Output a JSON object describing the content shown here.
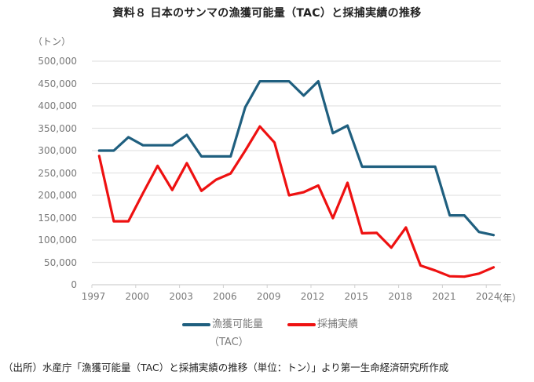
{
  "chart_data": {
    "type": "line",
    "title": "資料８ 日本のサンマの漁獲可能量（TAC）と採捕実績の推移",
    "ylabel": "（トン）",
    "xlabel": "（年）",
    "ylim": [
      0,
      500000
    ],
    "y_ticks": [
      "500,000",
      "450,000",
      "400,000",
      "350,000",
      "300,000",
      "250,000",
      "200,000",
      "150,000",
      "100,000",
      "50,000",
      "0"
    ],
    "y_tick_values": [
      500000,
      450000,
      400000,
      350000,
      300000,
      250000,
      200000,
      150000,
      100000,
      50000,
      0
    ],
    "x_ticks": [
      "1997",
      "2000",
      "2003",
      "2006",
      "2009",
      "2012",
      "2015",
      "2018",
      "2021",
      "2024"
    ],
    "x": [
      1997,
      1998,
      1999,
      2000,
      2001,
      2002,
      2003,
      2004,
      2005,
      2006,
      2007,
      2008,
      2009,
      2010,
      2011,
      2012,
      2013,
      2014,
      2015,
      2016,
      2017,
      2018,
      2019,
      2020,
      2021,
      2022,
      2023,
      2024
    ],
    "grid": true,
    "legend_position": "bottom",
    "series": [
      {
        "name": "漁獲可能量",
        "name_sub": "（TAC）",
        "color": "#1f5f7f",
        "values": [
          300000,
          300000,
          330000,
          312000,
          312000,
          312000,
          335000,
          287000,
          287000,
          287000,
          397000,
          455000,
          455000,
          455000,
          423000,
          455000,
          339000,
          356000,
          264000,
          264000,
          264000,
          264000,
          264000,
          264000,
          155000,
          155000,
          118000,
          111000
        ]
      },
      {
        "name": "採捕実績",
        "color": "#ee1111",
        "values": [
          288000,
          142000,
          142000,
          205000,
          266000,
          212000,
          272000,
          210000,
          235000,
          249000,
          300000,
          354000,
          318000,
          200000,
          207000,
          222000,
          149000,
          228000,
          115000,
          116000,
          83000,
          128000,
          43000,
          32000,
          19000,
          18000,
          25000,
          39000
        ]
      }
    ]
  },
  "source": "（出所）水産庁「漁獲可能量（TAC）と採捕実績の推移（単位：トン）」より第一生命経済研究所作成"
}
